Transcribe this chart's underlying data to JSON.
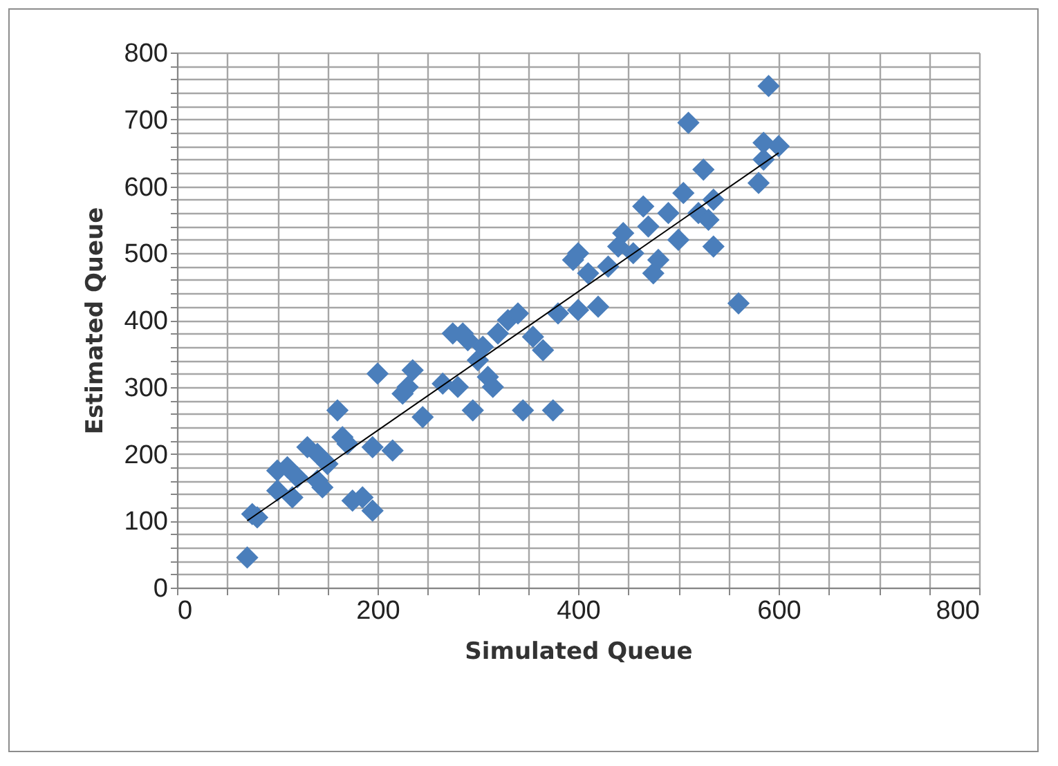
{
  "chart_data": {
    "type": "scatter",
    "xlabel": "Simulated Queue",
    "ylabel": "Estimated Queue",
    "grid": true,
    "xlim": [
      0,
      800
    ],
    "ylim": [
      0,
      800
    ],
    "xticks": [
      0,
      {
        "value": 50,
        "label": null
      },
      {
        "value": 100,
        "label": null
      },
      {
        "value": 150,
        "label": null
      },
      200,
      {
        "value": 250,
        "label": null
      },
      {
        "value": 300,
        "label": null
      },
      {
        "value": 350,
        "label": null
      },
      400,
      {
        "value": 450,
        "label": null
      },
      {
        "value": 500,
        "label": null
      },
      {
        "value": 550,
        "label": null
      },
      600,
      {
        "value": 650,
        "label": null
      },
      {
        "value": 700,
        "label": null
      },
      {
        "value": 750,
        "label": null
      },
      800
    ],
    "yticks": [
      0,
      {
        "value": 20,
        "label": null
      },
      {
        "value": 40,
        "label": null
      },
      {
        "value": 60,
        "label": null
      },
      {
        "value": 80,
        "label": null
      },
      100,
      {
        "value": 120,
        "label": null
      },
      {
        "value": 140,
        "label": null
      },
      {
        "value": 160,
        "label": null
      },
      {
        "value": 180,
        "label": null
      },
      200,
      {
        "value": 220,
        "label": null
      },
      {
        "value": 240,
        "label": null
      },
      {
        "value": 260,
        "label": null
      },
      {
        "value": 280,
        "label": null
      },
      300,
      {
        "value": 320,
        "label": null
      },
      {
        "value": 340,
        "label": null
      },
      {
        "value": 360,
        "label": null
      },
      {
        "value": 380,
        "label": null
      },
      400,
      {
        "value": 420,
        "label": null
      },
      {
        "value": 440,
        "label": null
      },
      {
        "value": 460,
        "label": null
      },
      {
        "value": 480,
        "label": null
      },
      500,
      {
        "value": 520,
        "label": null
      },
      {
        "value": 540,
        "label": null
      },
      {
        "value": 560,
        "label": null
      },
      {
        "value": 580,
        "label": null
      },
      600,
      {
        "value": 620,
        "label": null
      },
      {
        "value": 640,
        "label": null
      },
      {
        "value": 660,
        "label": null
      },
      {
        "value": 680,
        "label": null
      },
      700,
      {
        "value": 720,
        "label": null
      },
      {
        "value": 740,
        "label": null
      },
      {
        "value": 760,
        "label": null
      },
      {
        "value": 780,
        "label": null
      },
      800
    ],
    "series": [
      {
        "marker": "diamond",
        "color": "#4a7ebb",
        "x": [
          70,
          75,
          80,
          100,
          100,
          110,
          115,
          120,
          130,
          140,
          140,
          145,
          150,
          160,
          165,
          170,
          175,
          185,
          195,
          195,
          200,
          215,
          225,
          230,
          235,
          245,
          265,
          275,
          280,
          285,
          290,
          295,
          300,
          305,
          310,
          315,
          320,
          330,
          340,
          345,
          355,
          365,
          375,
          380,
          395,
          400,
          400,
          410,
          420,
          430,
          440,
          445,
          455,
          465,
          470,
          475,
          480,
          490,
          500,
          505,
          510,
          520,
          525,
          530,
          535,
          535,
          560,
          580,
          585,
          590,
          600,
          585
        ],
        "values": [
          45,
          110,
          105,
          175,
          145,
          180,
          135,
          165,
          210,
          200,
          160,
          150,
          185,
          265,
          225,
          215,
          130,
          135,
          115,
          210,
          320,
          205,
          290,
          300,
          325,
          255,
          305,
          380,
          300,
          380,
          370,
          265,
          340,
          360,
          315,
          300,
          380,
          400,
          410,
          265,
          375,
          355,
          265,
          410,
          490,
          500,
          415,
          470,
          420,
          480,
          510,
          530,
          500,
          570,
          540,
          470,
          490,
          560,
          520,
          590,
          695,
          560,
          625,
          550,
          510,
          580,
          425,
          605,
          665,
          750,
          660,
          640
        ]
      },
      {
        "type": "line",
        "color": "#000000",
        "x": [
          70,
          600
        ],
        "values": [
          100,
          650
        ]
      }
    ]
  }
}
